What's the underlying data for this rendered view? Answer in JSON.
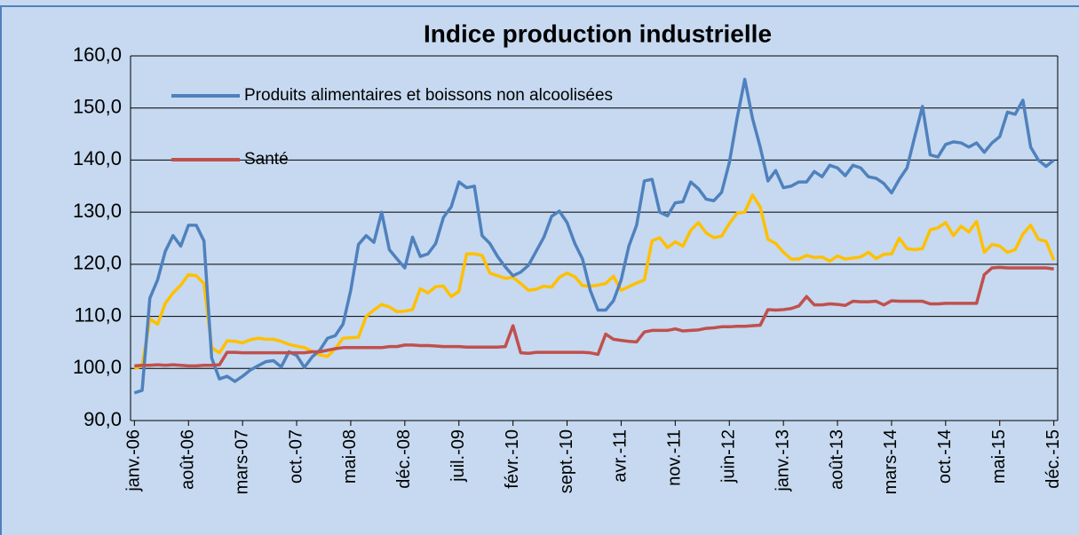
{
  "chart_data": {
    "type": "line",
    "title": "Indice production industrielle",
    "categories": [
      "janv.-06",
      null,
      null,
      null,
      null,
      null,
      null,
      "août-06",
      null,
      null,
      null,
      null,
      null,
      null,
      "mars-07",
      null,
      null,
      null,
      null,
      null,
      null,
      "oct.-07",
      null,
      null,
      null,
      null,
      null,
      null,
      "mai-08",
      null,
      null,
      null,
      null,
      null,
      null,
      "déc.-08",
      null,
      null,
      null,
      null,
      null,
      null,
      "juil.-09",
      null,
      null,
      null,
      null,
      null,
      null,
      "févr.-10",
      null,
      null,
      null,
      null,
      null,
      null,
      "sept.-10",
      null,
      null,
      null,
      null,
      null,
      null,
      "avr.-11",
      null,
      null,
      null,
      null,
      null,
      null,
      "nov.-11",
      null,
      null,
      null,
      null,
      null,
      null,
      "juin-12",
      null,
      null,
      null,
      null,
      null,
      null,
      "janv.-13",
      null,
      null,
      null,
      null,
      null,
      null,
      "août-13",
      null,
      null,
      null,
      null,
      null,
      null,
      "mars-14",
      null,
      null,
      null,
      null,
      null,
      null,
      "oct.-14",
      null,
      null,
      null,
      null,
      null,
      null,
      "mai-15",
      null,
      null,
      null,
      null,
      null,
      null,
      "déc.-15"
    ],
    "series": [
      {
        "name": "Produits alimentaires et boissons non alcoolisées",
        "color": "#4f81bd",
        "values": [
          95.3,
          95.8,
          113.5,
          117,
          122.5,
          125.5,
          123.5,
          127.5,
          127.5,
          124.5,
          102,
          98,
          98.5,
          97.5,
          98.5,
          99.7,
          100.5,
          101.3,
          101.5,
          100.3,
          103.2,
          102.5,
          100.2,
          102.2,
          103.5,
          105.8,
          106.3,
          108.5,
          115,
          123.8,
          125.5,
          124.2,
          130,
          122.8,
          121,
          119.3,
          125.2,
          121.5,
          122,
          124,
          129,
          131,
          135.8,
          134.7,
          135,
          125.5,
          124,
          121.5,
          119.5,
          117.8,
          118.5,
          119.8,
          122.5,
          125.2,
          129.2,
          130.2,
          128,
          124,
          121,
          115,
          111.2,
          111.2,
          113,
          117,
          123.5,
          127.5,
          136,
          136.3,
          130,
          129.3,
          131.8,
          132,
          135.8,
          134.5,
          132.5,
          132.2,
          133.8,
          139.5,
          148,
          155.5,
          148,
          142.5,
          136,
          138,
          134.7,
          135,
          135.8,
          135.8,
          137.8,
          136.8,
          139,
          138.5,
          137,
          139,
          138.5,
          136.8,
          136.5,
          135.5,
          133.7,
          136.3,
          138.5,
          144.5,
          150.3,
          141,
          140.6,
          143,
          143.5,
          143.3,
          142.5,
          143.3,
          141.5,
          143.3,
          144.5,
          149.2,
          148.8,
          151.5,
          142.5,
          140,
          138.8,
          140
        ]
      },
      {
        "color": "#ffc000",
        "values": [
          100,
          100.5,
          109.5,
          108.5,
          112.5,
          114.5,
          116,
          118,
          117.8,
          116.3,
          104,
          103,
          105.3,
          105.2,
          104.9,
          105.5,
          105.8,
          105.6,
          105.6,
          105.2,
          104.6,
          104.3,
          104,
          103.3,
          102.6,
          102.3,
          103.8,
          105.8,
          105.9,
          106,
          110,
          111.2,
          112.3,
          111.8,
          110.9,
          111,
          111.3,
          115.3,
          114.5,
          115.7,
          115.8,
          113.8,
          114.8,
          122,
          122,
          121.7,
          118.3,
          117.8,
          117.3,
          117.5,
          116.3,
          115,
          115.2,
          115.8,
          115.6,
          117.5,
          118.3,
          117.6,
          115.9,
          115.8,
          116,
          116.3,
          117.7,
          115,
          115.7,
          116.4,
          117,
          124.5,
          125.1,
          123.2,
          124.3,
          123.5,
          126.5,
          128,
          126,
          125.1,
          125.4,
          127.8,
          129.8,
          130,
          133.3,
          131,
          124.8,
          124,
          122.3,
          121,
          121,
          121.7,
          121.3,
          121.4,
          120.6,
          121.6,
          121,
          121.2,
          121.4,
          122.3,
          121.1,
          121.9,
          122,
          125,
          123,
          122.8,
          123,
          126.6,
          127,
          128,
          125.5,
          127.3,
          126.2,
          128.2,
          122.3,
          123.8,
          123.5,
          122.3,
          122.8,
          125.8,
          127.5,
          124.8,
          124.4,
          120.8
        ]
      },
      {
        "name": "Santé",
        "color": "#c0504d",
        "values": [
          100.5,
          100.6,
          100.6,
          100.7,
          100.6,
          100.7,
          100.6,
          100.5,
          100.5,
          100.6,
          100.6,
          100.7,
          103.1,
          103.1,
          103,
          103,
          103,
          103,
          103,
          103,
          103,
          103,
          103,
          103.2,
          103.2,
          103.5,
          103.8,
          104,
          104,
          104,
          104,
          104,
          104,
          104.2,
          104.2,
          104.5,
          104.5,
          104.4,
          104.4,
          104.3,
          104.2,
          104.2,
          104.2,
          104.1,
          104.1,
          104.1,
          104.1,
          104.1,
          104.2,
          108.2,
          103,
          102.9,
          103.1,
          103.1,
          103.1,
          103.1,
          103.1,
          103.1,
          103.1,
          103,
          102.7,
          106.6,
          105.6,
          105.4,
          105.2,
          105.1,
          107,
          107.3,
          107.3,
          107.3,
          107.6,
          107.2,
          107.3,
          107.4,
          107.7,
          107.8,
          108,
          108,
          108.1,
          108.1,
          108.2,
          108.3,
          111.3,
          111.2,
          111.3,
          111.5,
          112,
          113.8,
          112.2,
          112.2,
          112.4,
          112.3,
          112.1,
          112.9,
          112.8,
          112.8,
          112.9,
          112.2,
          113,
          112.9,
          112.9,
          112.9,
          112.9,
          112.4,
          112.4,
          112.5,
          112.5,
          112.5,
          112.5,
          112.5,
          118,
          119.3,
          119.4,
          119.3,
          119.3,
          119.3,
          119.3,
          119.3,
          119.3,
          119.1
        ]
      }
    ],
    "ylim": [
      90,
      160
    ],
    "yticks": [
      {
        "value": 90,
        "label": "90,0"
      },
      {
        "value": 100,
        "label": "100,0"
      },
      {
        "value": 110,
        "label": "110,0"
      },
      {
        "value": 120,
        "label": "120,0"
      },
      {
        "value": 130,
        "label": "130,0"
      },
      {
        "value": 140,
        "label": "140,0"
      },
      {
        "value": 150,
        "label": "150,0"
      },
      {
        "value": 160,
        "label": "160,0"
      }
    ],
    "grid": true,
    "legend": "top-left"
  }
}
